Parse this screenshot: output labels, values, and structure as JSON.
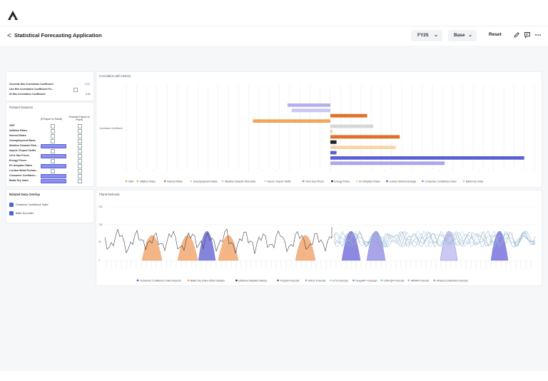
{
  "app": {
    "title": "Statistical Forecasting Application",
    "back_glyph": "<"
  },
  "toolbar": {
    "fy_value": "FY25",
    "version_value": "Base",
    "reset_label": "Reset",
    "chevron": "⌄"
  },
  "settings_panel": {
    "rows": [
      {
        "label": "Override Min Correlation Coefficient",
        "value": "0.00"
      },
      {
        "label": "Use Min Correlation Coefficient Fo...",
        "value": ""
      },
      {
        "label": "ID Min Correlation Coefficient",
        "value": "0.01"
      }
    ]
  },
  "related_datasets": {
    "title": "Related Datasets",
    "col1": "(If Export to Plan8)",
    "col2": "Override Export to Plan8",
    "rows": [
      "GDP",
      "Inflation Rates",
      "Interest Rates",
      "Unemployment Rates",
      "Weather Disaster Risk...",
      "Import / Export Tariffs",
      "Oil & Gas Prices",
      "Energy Prices",
      "EV Adoption Rates",
      "London Metal Exchan...",
      "Consumer Confidenc...",
      "Baltic Dry Index"
    ],
    "input_rows": [
      4,
      6,
      8,
      10,
      11
    ]
  },
  "overlay": {
    "title": "Related Data Overlay",
    "items": [
      {
        "label": "Consumer Confidence Index",
        "color": "#4f63d8"
      },
      {
        "label": "Baltic Dry Index",
        "color": "#4f63d8"
      }
    ]
  },
  "correlation": {
    "title": "Correlation with History",
    "ylabel": "Correlation Coefficient",
    "x_min": -1,
    "x_max": 1,
    "bars": [
      {
        "name": "Consumer Confidence Index",
        "value": -0.21,
        "color": "#b3b0ee"
      },
      {
        "name": "Baltic Dry Index",
        "value": -0.19,
        "color": "#c9c6f4"
      },
      {
        "name": "Interest Rates",
        "value": 0.18,
        "color": "#e0702a"
      },
      {
        "name": "Inflation Rates",
        "value": -0.38,
        "color": "#f3a65a"
      },
      {
        "name": "Import / Export Tariffs",
        "value": 0.21,
        "color": "#d6d6d6"
      },
      {
        "name": "Unemployment Rates",
        "value": 0.01,
        "color": "#f6c89a"
      },
      {
        "name": "Oil & Gas Prices",
        "value": 0.34,
        "color": "#e0702a"
      },
      {
        "name": "Energy Prices",
        "value": 0.03,
        "color": "#222222"
      },
      {
        "name": "GDP",
        "value": 0.32,
        "color": "#f6d4a8"
      },
      {
        "name": "London Metal Exchange",
        "value": 0.03,
        "color": "#5b5fd6"
      },
      {
        "name": "EV Adoption Rates",
        "value": 0.95,
        "color": "#5b5fd6"
      },
      {
        "name": "Weather Disaster Risk Data",
        "value": 0.56,
        "color": "#a8a6ec"
      }
    ],
    "legend": [
      {
        "label": "GDP",
        "color": "#f3a65a"
      },
      {
        "label": "Inflation Rates",
        "color": "#f3a65a"
      },
      {
        "label": "Interest Rates",
        "color": "#e0702a"
      },
      {
        "label": "Unemployment Rates",
        "color": "#f6c89a"
      },
      {
        "label": "Weather Disaster Risk Data",
        "color": "#c9c6f4"
      },
      {
        "label": "Import / Export Tariffs",
        "color": "#d6d6d6"
      },
      {
        "label": "Oil & Gas Prices",
        "color": "#999999"
      },
      {
        "label": "Energy Prices",
        "color": "#222222"
      },
      {
        "label": "EV Adoption Rates",
        "color": "#f6d4a8"
      },
      {
        "label": "London Metal Exchange",
        "color": "#5b5fd6"
      },
      {
        "label": "Consumer Confidence Index",
        "color": "#8a8ff0"
      },
      {
        "label": "Baltic Dry Index",
        "color": "#c9c6f4"
      }
    ]
  },
  "methods": {
    "title": "Plan8 Methods",
    "yticks": [
      "20K",
      "10K",
      "5K",
      "0"
    ],
    "legend": [
      {
        "label": "Consumer Confidence Index Impacts",
        "color": "#5b5fd6"
      },
      {
        "label": "Baltic Dry Index Offset Impacts",
        "color": "#f3a65a"
      },
      {
        "label": "Effective Adjusted History",
        "color": "#444444"
      },
      {
        "label": "Prophet Forecast",
        "color": "#777777"
      },
      {
        "label": "MXLR Forecast",
        "color": "#8ab4d8"
      },
      {
        "label": "ETS Forecast",
        "color": "#9fd3e6"
      },
      {
        "label": "DeepAR+ Forecast",
        "color": "#6fa8c8"
      },
      {
        "label": "CNN-QR Forecast",
        "color": "#7bc0d0"
      },
      {
        "label": "ARIMA Forecast",
        "color": "#b0b0e8"
      },
      {
        "label": "Amazon Ensemble Forecast",
        "color": "#a0a0a0"
      }
    ]
  }
}
